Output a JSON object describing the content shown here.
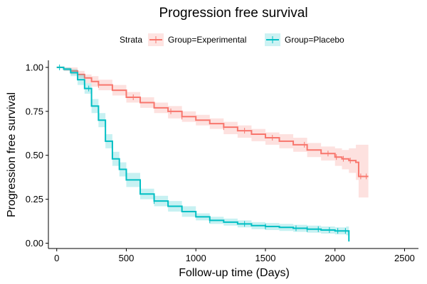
{
  "chart_data": {
    "type": "line",
    "title": "Progression free survival",
    "xlabel": "Follow-up time (Days)",
    "ylabel": "Progression free survival",
    "xlim": [
      -60,
      2600
    ],
    "ylim": [
      -0.03,
      1.04
    ],
    "xticks": [
      0,
      500,
      1000,
      1500,
      2000,
      2500
    ],
    "yticks": [
      0.0,
      0.25,
      0.5,
      0.75,
      1.0
    ],
    "xtick_labels": [
      "0",
      "500",
      "1000",
      "1500",
      "2000",
      "2500"
    ],
    "ytick_labels": [
      "0.00",
      "0.25",
      "0.50",
      "0.75",
      "1.00"
    ],
    "grid": false,
    "legend": {
      "title": "Strata",
      "placement": "top",
      "entries": [
        "Group=Experimental",
        "Group=Placebo"
      ]
    },
    "series": [
      {
        "name": "Group=Experimental",
        "color": "#F8766D",
        "x": [
          0,
          50,
          100,
          150,
          200,
          250,
          300,
          400,
          500,
          600,
          700,
          800,
          900,
          1000,
          1100,
          1200,
          1300,
          1400,
          1500,
          1600,
          1700,
          1800,
          1900,
          2000,
          2050,
          2100,
          2150,
          2170,
          2240
        ],
        "y": [
          1.0,
          0.99,
          0.98,
          0.96,
          0.94,
          0.92,
          0.9,
          0.87,
          0.83,
          0.8,
          0.77,
          0.75,
          0.72,
          0.7,
          0.68,
          0.66,
          0.64,
          0.62,
          0.6,
          0.58,
          0.56,
          0.53,
          0.51,
          0.49,
          0.48,
          0.47,
          0.46,
          0.38,
          0.38
        ],
        "lower": [
          1.0,
          0.98,
          0.96,
          0.94,
          0.91,
          0.89,
          0.87,
          0.84,
          0.8,
          0.77,
          0.74,
          0.71,
          0.69,
          0.67,
          0.65,
          0.62,
          0.6,
          0.58,
          0.56,
          0.54,
          0.52,
          0.49,
          0.47,
          0.44,
          0.42,
          0.4,
          0.36,
          0.26,
          0.26
        ],
        "upper": [
          1.0,
          1.0,
          1.0,
          0.98,
          0.96,
          0.95,
          0.93,
          0.9,
          0.86,
          0.83,
          0.8,
          0.78,
          0.75,
          0.73,
          0.71,
          0.69,
          0.67,
          0.65,
          0.63,
          0.62,
          0.6,
          0.57,
          0.55,
          0.54,
          0.53,
          0.54,
          0.56,
          0.56,
          0.56
        ]
      },
      {
        "name": "Group=Placebo",
        "color": "#00BFC4",
        "x": [
          0,
          50,
          100,
          150,
          200,
          250,
          300,
          350,
          400,
          450,
          500,
          600,
          700,
          800,
          900,
          1000,
          1100,
          1200,
          1300,
          1400,
          1500,
          1600,
          1700,
          1800,
          1900,
          2000,
          2050,
          2080,
          2100
        ],
        "y": [
          1.0,
          0.99,
          0.97,
          0.93,
          0.88,
          0.78,
          0.7,
          0.58,
          0.48,
          0.42,
          0.36,
          0.28,
          0.24,
          0.21,
          0.18,
          0.15,
          0.13,
          0.12,
          0.11,
          0.1,
          0.095,
          0.09,
          0.085,
          0.08,
          0.075,
          0.07,
          0.07,
          0.07,
          0.01
        ],
        "lower": [
          1.0,
          0.98,
          0.95,
          0.9,
          0.85,
          0.74,
          0.66,
          0.54,
          0.44,
          0.38,
          0.32,
          0.25,
          0.21,
          0.18,
          0.15,
          0.13,
          0.11,
          0.1,
          0.09,
          0.08,
          0.075,
          0.07,
          0.065,
          0.06,
          0.055,
          0.05,
          0.05,
          0.045,
          0.0
        ],
        "upper": [
          1.0,
          1.0,
          0.99,
          0.96,
          0.91,
          0.82,
          0.74,
          0.62,
          0.52,
          0.46,
          0.4,
          0.31,
          0.27,
          0.24,
          0.21,
          0.17,
          0.15,
          0.14,
          0.13,
          0.12,
          0.115,
          0.11,
          0.105,
          0.1,
          0.095,
          0.09,
          0.09,
          0.095,
          0.04
        ]
      }
    ],
    "censor_marks": [
      {
        "series": "Group=Experimental",
        "x": [
          300,
          550,
          820,
          900,
          1200,
          1350,
          1550,
          1780,
          1950,
          2010,
          2060,
          2110,
          2185,
          2225
        ]
      },
      {
        "series": "Group=Placebo",
        "x": [
          20,
          230,
          700,
          1100,
          1350,
          1500,
          1720,
          1800,
          1880,
          1960,
          2020,
          2075
        ]
      }
    ]
  }
}
